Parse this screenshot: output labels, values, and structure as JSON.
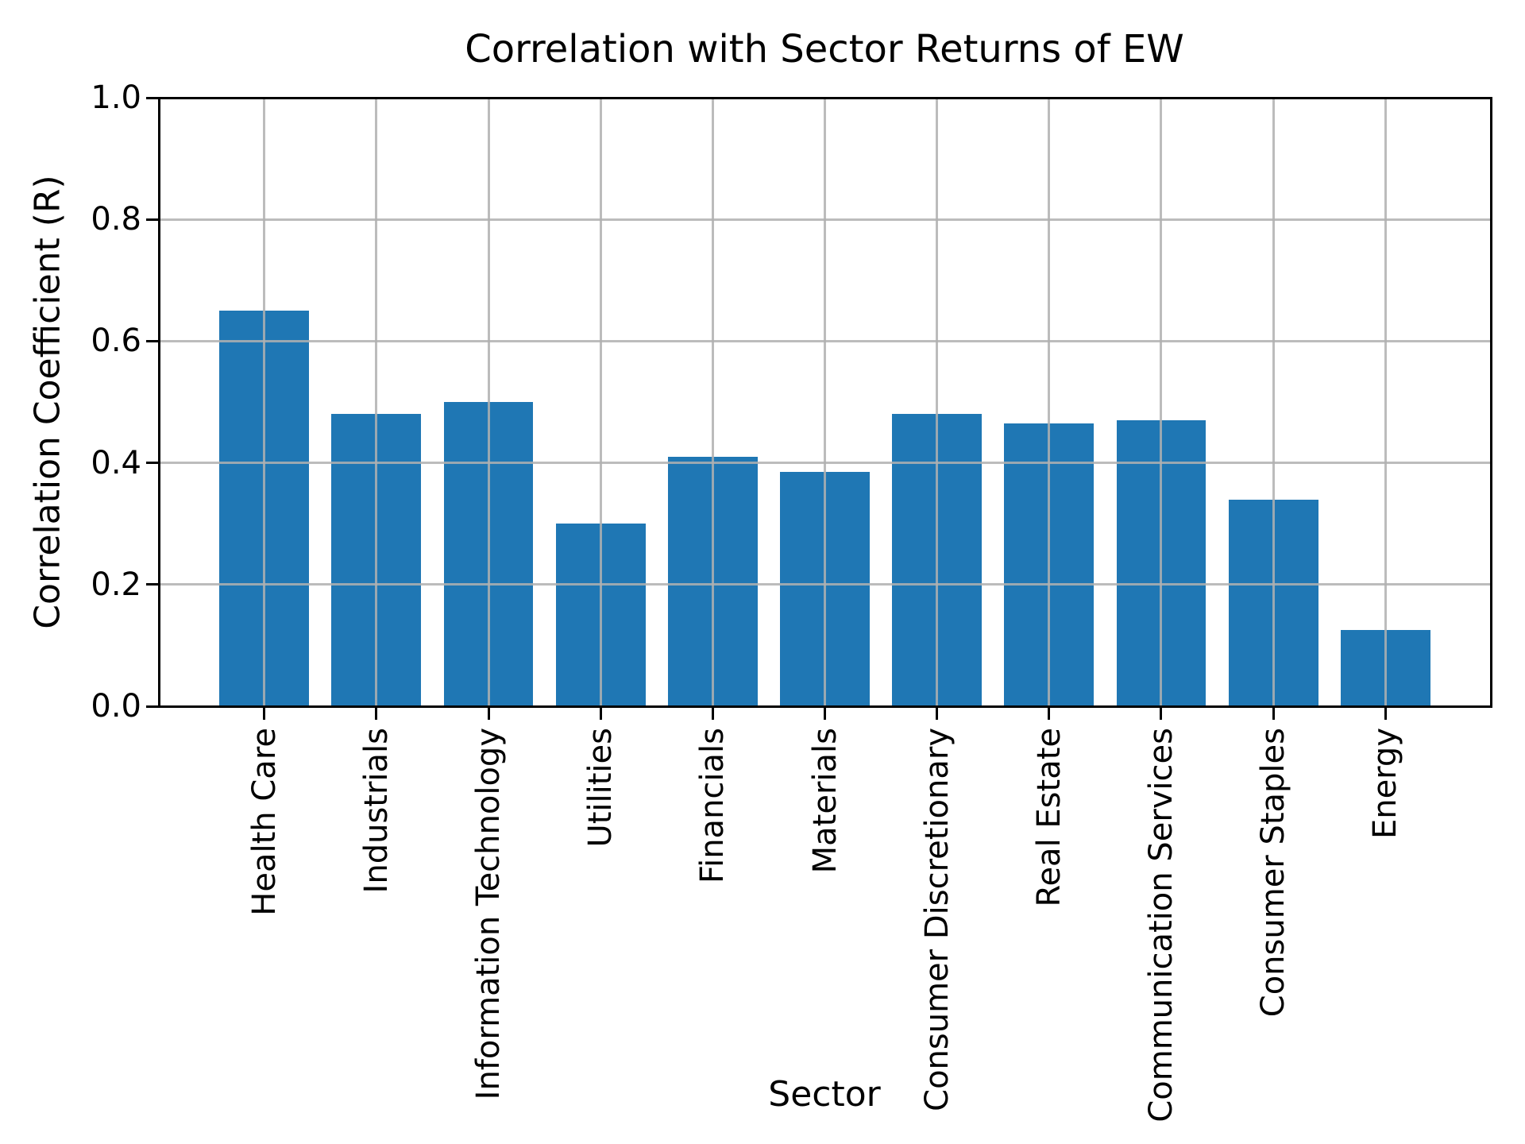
{
  "chart_data": {
    "type": "bar",
    "title": "Correlation with Sector Returns of EW",
    "xlabel": "Sector",
    "ylabel": "Correlation Coefficient (R)",
    "categories": [
      "Health Care",
      "Industrials",
      "Information Technology",
      "Utilities",
      "Financials",
      "Materials",
      "Consumer Discretionary",
      "Real Estate",
      "Communication Services",
      "Consumer Staples",
      "Energy"
    ],
    "values": [
      0.65,
      0.48,
      0.5,
      0.3,
      0.41,
      0.385,
      0.48,
      0.465,
      0.47,
      0.34,
      0.125
    ],
    "ylim": [
      0.0,
      1.0
    ],
    "ytick_labels": [
      "0.0",
      "0.2",
      "0.4",
      "0.6",
      "0.8",
      "1.0"
    ],
    "ytick_values": [
      0.0,
      0.2,
      0.4,
      0.6,
      0.8,
      1.0
    ],
    "grid": true,
    "legend": "none",
    "bar_color": "#1f77b4",
    "grid_color": "#b0b0b0",
    "axis_color": "#000000",
    "background_color": "#ffffff"
  }
}
